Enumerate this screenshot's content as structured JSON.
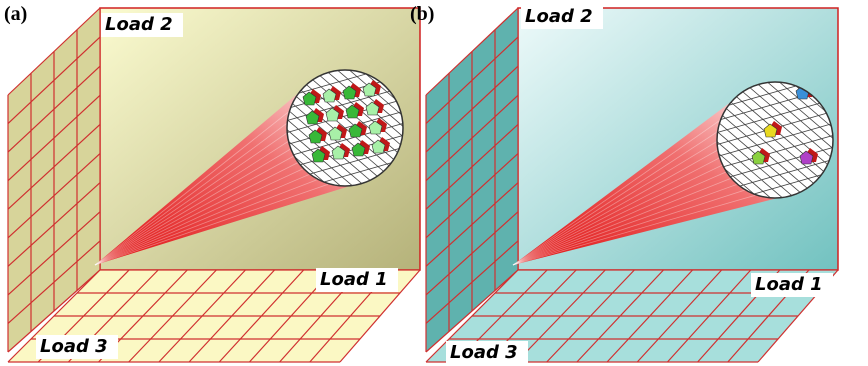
{
  "panels": [
    {
      "label": "(a)",
      "loads": [
        "Load 2",
        "Load 1",
        "Load 3"
      ]
    },
    {
      "label": "(b)",
      "loads": [
        "Load 2",
        "Load 1",
        "Load 3"
      ]
    }
  ]
}
